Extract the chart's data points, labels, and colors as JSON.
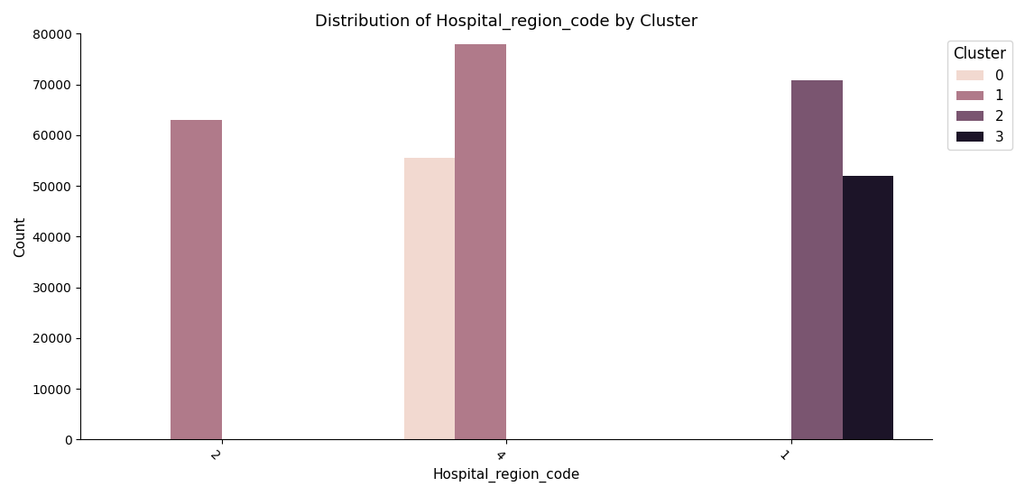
{
  "title": "Distribution of Hospital_region_code by Cluster",
  "xlabel": "Hospital_region_code",
  "ylabel": "Count",
  "ylim": [
    0,
    80000
  ],
  "yticks": [
    0,
    10000,
    20000,
    30000,
    40000,
    50000,
    60000,
    70000,
    80000
  ],
  "categories": [
    "2",
    "4",
    "1"
  ],
  "clusters": [
    0,
    1,
    2,
    3
  ],
  "cluster_colors": [
    "#f2d9d0",
    "#b07a8a",
    "#7a5570",
    "#1c1428"
  ],
  "data": {
    "0": {
      "2": 0,
      "4": 55500,
      "1": 0
    },
    "1": {
      "2": 63000,
      "4": 78000,
      "1": 0
    },
    "2": {
      "2": 0,
      "4": 0,
      "1": 70800
    },
    "3": {
      "2": 0,
      "4": 0,
      "1": 52000
    }
  },
  "bar_width": 0.18,
  "xtick_rotation": -45,
  "figsize": [
    11.36,
    5.5
  ],
  "dpi": 100
}
